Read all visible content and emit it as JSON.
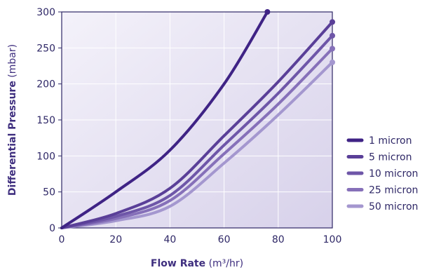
{
  "chart_data": {
    "type": "line",
    "title": "",
    "x": [
      0,
      20,
      40,
      60,
      80,
      100
    ],
    "xlabel": {
      "bold": "Flow Rate",
      "unit": "(m³/hr)"
    },
    "ylabel": {
      "bold": "Differential Pressure",
      "unit": "(mbar)"
    },
    "xlim": [
      0,
      100
    ],
    "ylim": [
      0,
      300
    ],
    "xticks": [
      "0",
      "20",
      "40",
      "60",
      "80",
      "100"
    ],
    "yticks": [
      "0",
      "50",
      "100",
      "150",
      "200",
      "250",
      "300"
    ],
    "grid": true,
    "legend_position": "right",
    "series": [
      {
        "name": "1 micron",
        "color": "#3f2385",
        "x": [
          0,
          20,
          40,
          60,
          76
        ],
        "values": [
          0,
          50,
          108,
          200,
          300
        ]
      },
      {
        "name": "5 micron",
        "color": "#5a3f98",
        "x": [
          0,
          20,
          40,
          60,
          80,
          100
        ],
        "values": [
          0,
          20,
          55,
          128,
          203,
          286
        ]
      },
      {
        "name": "10 micron",
        "color": "#6e56a8",
        "x": [
          0,
          20,
          40,
          60,
          80,
          100
        ],
        "values": [
          0,
          16,
          45,
          115,
          187,
          267
        ]
      },
      {
        "name": "25 micron",
        "color": "#8670b9",
        "x": [
          0,
          20,
          40,
          60,
          80,
          100
        ],
        "values": [
          0,
          13,
          38,
          103,
          172,
          249
        ]
      },
      {
        "name": "50 micron",
        "color": "#a497cf",
        "x": [
          0,
          20,
          40,
          60,
          80,
          100
        ],
        "values": [
          0,
          10,
          30,
          90,
          157,
          230
        ]
      }
    ]
  }
}
